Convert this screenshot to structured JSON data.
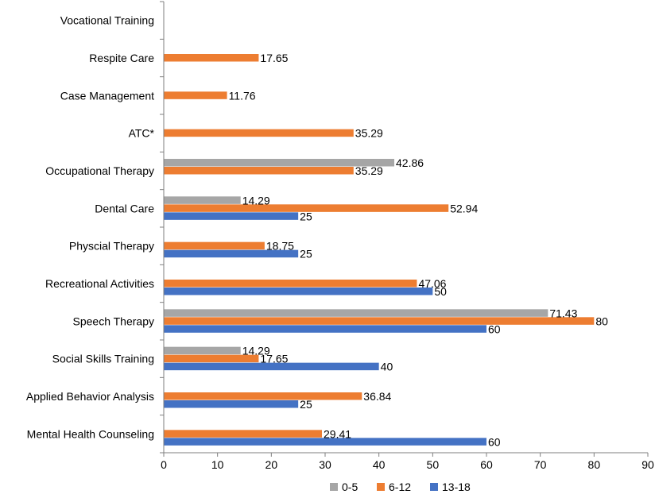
{
  "chart_data": {
    "type": "bar",
    "orientation": "horizontal",
    "categories": [
      "Vocational Training",
      "Respite Care",
      "Case Management",
      "ATC*",
      "Occupational Therapy",
      "Dental Care",
      "Physcial Therapy",
      "Recreational Activities",
      "Speech Therapy",
      "Social Skills Training",
      "Applied Behavior Analysis",
      "Mental Health Counseling"
    ],
    "series": [
      {
        "name": "0-5",
        "color": "#a6a6a6",
        "values": [
          null,
          null,
          null,
          null,
          42.86,
          14.29,
          null,
          null,
          71.43,
          14.29,
          null,
          null
        ],
        "labels": [
          "",
          "",
          "",
          "",
          "42.86",
          "14.29",
          "",
          "",
          "71.43",
          "14.29",
          "",
          ""
        ]
      },
      {
        "name": "6-12",
        "color": "#ed7d31",
        "values": [
          null,
          17.65,
          11.76,
          35.29,
          35.29,
          52.94,
          18.75,
          47.06,
          80,
          17.65,
          36.84,
          29.41
        ],
        "labels": [
          "",
          "17.65",
          "11.76",
          "35.29",
          "35.29",
          "52.94",
          "18.75",
          "47.06",
          "80",
          "17.65",
          "36.84",
          "29.41"
        ]
      },
      {
        "name": "13-18",
        "color": "#4472c4",
        "values": [
          null,
          null,
          null,
          null,
          null,
          25,
          25,
          50,
          60,
          40,
          25,
          60
        ],
        "labels": [
          "",
          "",
          "",
          "",
          "",
          "25",
          "25",
          "50",
          "60",
          "40",
          "25",
          "60"
        ]
      }
    ],
    "xlim": [
      0,
      90
    ],
    "xticks": [
      "0",
      "10",
      "20",
      "30",
      "40",
      "50",
      "60",
      "70",
      "80",
      "90"
    ],
    "legend_position": "bottom",
    "grid": false
  }
}
